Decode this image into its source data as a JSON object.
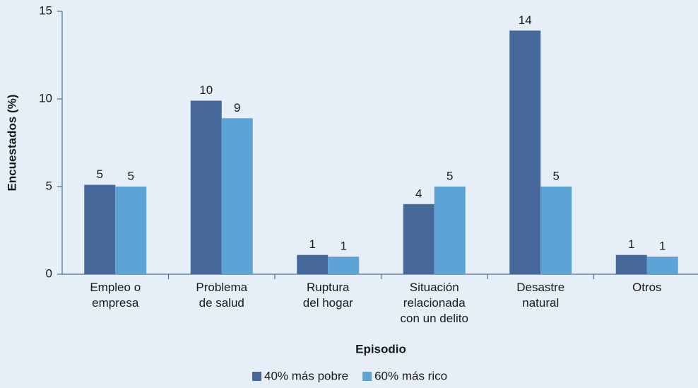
{
  "chart_data": {
    "type": "bar",
    "x_label": "Episodio",
    "y_label": "Encuestados (%)",
    "categories": [
      [
        "Empleo o",
        "empresa"
      ],
      [
        "Problema",
        "de salud"
      ],
      [
        "Ruptura",
        "del hogar"
      ],
      [
        "Situación",
        "relacionada",
        "con un delito"
      ],
      [
        "Desastre",
        "natural"
      ],
      [
        "Otros"
      ]
    ],
    "series": [
      {
        "name": "40% más pobre",
        "color": "#46689a",
        "values": [
          5.1,
          9.9,
          1.1,
          4.0,
          13.9,
          1.1
        ],
        "value_labels": [
          "5",
          "10",
          "1",
          "4",
          "14",
          "1"
        ]
      },
      {
        "name": "60% más rico",
        "color": "#5ea3d6",
        "values": [
          5.0,
          8.9,
          1.0,
          5.0,
          5.0,
          1.0
        ],
        "value_labels": [
          "5",
          "9",
          "1",
          "5",
          "5",
          "1"
        ]
      }
    ],
    "ylim": [
      0,
      15
    ],
    "yticks": [
      0,
      5,
      10,
      15
    ],
    "grid": false
  }
}
